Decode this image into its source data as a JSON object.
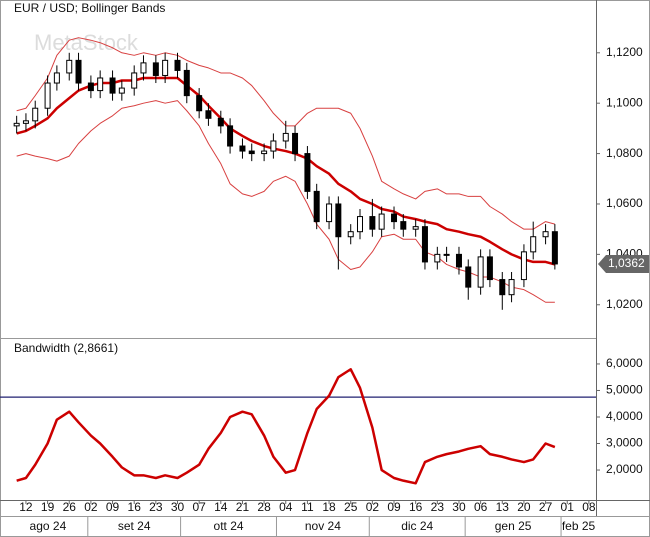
{
  "chart_data": [
    {
      "type": "candlestick",
      "title": "EUR / USD; Bollinger Bands",
      "watermark": "MetaStock",
      "x": [
        -3,
        0,
        3,
        7,
        10,
        14,
        17,
        21,
        24,
        28,
        31,
        35,
        38,
        42,
        45,
        49,
        52,
        56,
        59,
        63,
        66,
        70,
        73,
        77,
        80,
        84,
        87,
        91,
        94,
        98,
        101,
        105,
        108,
        112,
        115,
        119,
        122,
        126,
        129,
        133,
        136,
        140,
        143,
        147,
        150,
        154,
        157,
        161,
        164,
        168,
        171
      ],
      "open": [
        1.091,
        1.092,
        1.093,
        1.098,
        1.108,
        1.112,
        1.117,
        1.108,
        1.105,
        1.11,
        1.104,
        1.106,
        1.112,
        1.116,
        1.111,
        1.117,
        1.113,
        1.103,
        1.097,
        1.094,
        1.091,
        1.083,
        1.081,
        1.08,
        1.081,
        1.085,
        1.088,
        1.08,
        1.065,
        1.053,
        1.06,
        1.047,
        1.049,
        1.055,
        1.05,
        1.056,
        1.053,
        1.05,
        1.051,
        1.037,
        1.04,
        1.04,
        1.035,
        1.027,
        1.039,
        1.03,
        1.024,
        1.03,
        1.041,
        1.047,
        1.049
      ],
      "high": [
        1.095,
        1.096,
        1.101,
        1.111,
        1.115,
        1.12,
        1.12,
        1.111,
        1.113,
        1.113,
        1.109,
        1.115,
        1.119,
        1.119,
        1.12,
        1.12,
        1.116,
        1.106,
        1.1,
        1.097,
        1.094,
        1.086,
        1.084,
        1.084,
        1.088,
        1.093,
        1.091,
        1.083,
        1.068,
        1.063,
        1.063,
        1.052,
        1.058,
        1.062,
        1.059,
        1.059,
        1.056,
        1.054,
        1.054,
        1.043,
        1.043,
        1.043,
        1.038,
        1.042,
        1.042,
        1.033,
        1.033,
        1.044,
        1.053,
        1.052,
        1.052
      ],
      "low": [
        1.088,
        1.089,
        1.09,
        1.095,
        1.105,
        1.109,
        1.105,
        1.102,
        1.102,
        1.101,
        1.101,
        1.103,
        1.109,
        1.108,
        1.108,
        1.11,
        1.1,
        1.094,
        1.091,
        1.088,
        1.08,
        1.078,
        1.077,
        1.077,
        1.078,
        1.082,
        1.077,
        1.062,
        1.05,
        1.05,
        1.034,
        1.044,
        1.046,
        1.047,
        1.047,
        1.05,
        1.047,
        1.047,
        1.034,
        1.034,
        1.037,
        1.032,
        1.022,
        1.024,
        1.027,
        1.018,
        1.021,
        1.027,
        1.038,
        1.044,
        1.034
      ],
      "close": [
        1.092,
        1.093,
        1.098,
        1.108,
        1.112,
        1.117,
        1.108,
        1.105,
        1.11,
        1.104,
        1.106,
        1.112,
        1.116,
        1.111,
        1.117,
        1.113,
        1.103,
        1.097,
        1.094,
        1.091,
        1.083,
        1.081,
        1.08,
        1.081,
        1.085,
        1.088,
        1.08,
        1.065,
        1.053,
        1.06,
        1.047,
        1.049,
        1.055,
        1.05,
        1.056,
        1.053,
        1.05,
        1.051,
        1.037,
        1.04,
        1.04,
        1.035,
        1.027,
        1.039,
        1.03,
        1.024,
        1.03,
        1.041,
        1.047,
        1.049,
        1.0362
      ],
      "value_labels": [
        null,
        null,
        null,
        null,
        null,
        null,
        null,
        null,
        null,
        null,
        null,
        null,
        null,
        null,
        null,
        null,
        null,
        null,
        null,
        null,
        null,
        null,
        null,
        null,
        null,
        null,
        null,
        null,
        null,
        null,
        null,
        null,
        null,
        null,
        null,
        null,
        null,
        null,
        null,
        null,
        null,
        null,
        null,
        null,
        null,
        null,
        null,
        null,
        null,
        null,
        "1,0362"
      ],
      "upper_band": [
        1.097,
        1.098,
        1.103,
        1.11,
        1.119,
        1.125,
        1.126,
        1.125,
        1.124,
        1.122,
        1.12,
        1.119,
        1.12,
        1.119,
        1.12,
        1.119,
        1.117,
        1.115,
        1.114,
        1.112,
        1.112,
        1.11,
        1.107,
        1.101,
        1.096,
        1.091,
        1.091,
        1.096,
        1.098,
        1.098,
        1.098,
        1.096,
        1.09,
        1.079,
        1.069,
        1.066,
        1.064,
        1.062,
        1.065,
        1.066,
        1.064,
        1.064,
        1.063,
        1.063,
        1.059,
        1.056,
        1.053,
        1.05,
        1.05,
        1.053,
        1.052
      ],
      "middle_band": [
        1.088,
        1.089,
        1.091,
        1.094,
        1.098,
        1.102,
        1.105,
        1.107,
        1.108,
        1.108,
        1.109,
        1.109,
        1.11,
        1.11,
        1.11,
        1.11,
        1.107,
        1.103,
        1.099,
        1.094,
        1.09,
        1.087,
        1.085,
        1.083,
        1.082,
        1.081,
        1.08,
        1.078,
        1.075,
        1.072,
        1.068,
        1.065,
        1.062,
        1.06,
        1.058,
        1.057,
        1.055,
        1.054,
        1.053,
        1.052,
        1.05,
        1.049,
        1.048,
        1.047,
        1.045,
        1.042,
        1.04,
        1.038,
        1.037,
        1.037,
        1.036
      ],
      "lower_band": [
        1.079,
        1.08,
        1.079,
        1.078,
        1.077,
        1.079,
        1.084,
        1.089,
        1.092,
        1.095,
        1.098,
        1.099,
        1.1,
        1.101,
        1.1,
        1.101,
        1.097,
        1.091,
        1.084,
        1.076,
        1.068,
        1.064,
        1.063,
        1.065,
        1.069,
        1.071,
        1.069,
        1.06,
        1.052,
        1.046,
        1.038,
        1.034,
        1.035,
        1.041,
        1.047,
        1.048,
        1.046,
        1.046,
        1.041,
        1.039,
        1.036,
        1.034,
        1.033,
        1.031,
        1.031,
        1.029,
        1.027,
        1.026,
        1.024,
        1.021,
        1.021
      ],
      "band_color": "#d84040",
      "middle_color": "#cc0000",
      "up_color": "#ffffff",
      "down_color": "#000000",
      "xlim": [
        -5.8,
        184.3
      ],
      "ylim": [
        1.008,
        1.135
      ],
      "yticks": [
        {
          "value": 1.02,
          "label": "1,0200"
        },
        {
          "value": 1.04,
          "label": "1,0400"
        },
        {
          "value": 1.06,
          "label": "1,0600"
        },
        {
          "value": 1.08,
          "label": "1,0800"
        },
        {
          "value": 1.1,
          "label": "1,1000"
        },
        {
          "value": 1.12,
          "label": "1,1200"
        }
      ]
    },
    {
      "type": "line",
      "title": "Bandwidth (2,8661)",
      "color": "#cc0000",
      "x": [
        -3,
        0,
        3,
        7,
        10,
        14,
        17,
        21,
        24,
        28,
        31,
        35,
        38,
        42,
        45,
        49,
        52,
        56,
        59,
        63,
        66,
        70,
        73,
        77,
        80,
        84,
        87,
        91,
        94,
        98,
        101,
        105,
        108,
        112,
        115,
        119,
        122,
        126,
        129,
        133,
        136,
        140,
        143,
        147,
        150,
        154,
        157,
        161,
        164,
        168,
        171
      ],
      "values": [
        1.6,
        1.7,
        2.2,
        3.0,
        3.9,
        4.2,
        3.8,
        3.3,
        3.0,
        2.5,
        2.1,
        1.8,
        1.8,
        1.7,
        1.8,
        1.7,
        1.9,
        2.2,
        2.8,
        3.4,
        4.0,
        4.2,
        4.1,
        3.3,
        2.5,
        1.9,
        2.0,
        3.4,
        4.3,
        4.8,
        5.5,
        5.8,
        5.1,
        3.6,
        2.0,
        1.7,
        1.6,
        1.5,
        2.3,
        2.5,
        2.6,
        2.7,
        2.8,
        2.9,
        2.6,
        2.5,
        2.4,
        2.3,
        2.4,
        3.0,
        2.8661
      ],
      "reference_line": 4.75,
      "reference_color": "#202070",
      "xlim": [
        -5.8,
        184.3
      ],
      "ylim": [
        0.87,
        6.79
      ],
      "yticks": [
        {
          "value": 2,
          "label": "2,0000"
        },
        {
          "value": 3,
          "label": "3,0000"
        },
        {
          "value": 4,
          "label": "4,0000"
        },
        {
          "value": 5,
          "label": "5,0000"
        },
        {
          "value": 6,
          "label": "6,0000"
        }
      ],
      "xticks": [
        {
          "value": 0,
          "label": "12"
        },
        {
          "value": 7,
          "label": "19"
        },
        {
          "value": 14,
          "label": "26"
        },
        {
          "value": 21,
          "label": "02"
        },
        {
          "value": 28,
          "label": "09"
        },
        {
          "value": 35,
          "label": "16"
        },
        {
          "value": 42,
          "label": "23"
        },
        {
          "value": 49,
          "label": "30"
        },
        {
          "value": 56,
          "label": "07"
        },
        {
          "value": 63,
          "label": "14"
        },
        {
          "value": 70,
          "label": "21"
        },
        {
          "value": 77,
          "label": "28"
        },
        {
          "value": 84,
          "label": "04"
        },
        {
          "value": 91,
          "label": "11"
        },
        {
          "value": 98,
          "label": "18"
        },
        {
          "value": 105,
          "label": "25"
        },
        {
          "value": 112,
          "label": "02"
        },
        {
          "value": 119,
          "label": "09"
        },
        {
          "value": 126,
          "label": "16"
        },
        {
          "value": 133,
          "label": "23"
        },
        {
          "value": 140,
          "label": "30"
        },
        {
          "value": 147,
          "label": "06"
        },
        {
          "value": 154,
          "label": "13"
        },
        {
          "value": 161,
          "label": "20"
        },
        {
          "value": 168,
          "label": "27"
        },
        {
          "value": 175,
          "label": "01"
        },
        {
          "value": 182,
          "label": "08"
        }
      ],
      "month_labels": [
        "ago 24",
        "set 24",
        "ott 24",
        "nov 24",
        "dic 24",
        "gen 25",
        "feb 25"
      ],
      "month_breaks": [
        20,
        50,
        81,
        111,
        142,
        173
      ]
    }
  ]
}
